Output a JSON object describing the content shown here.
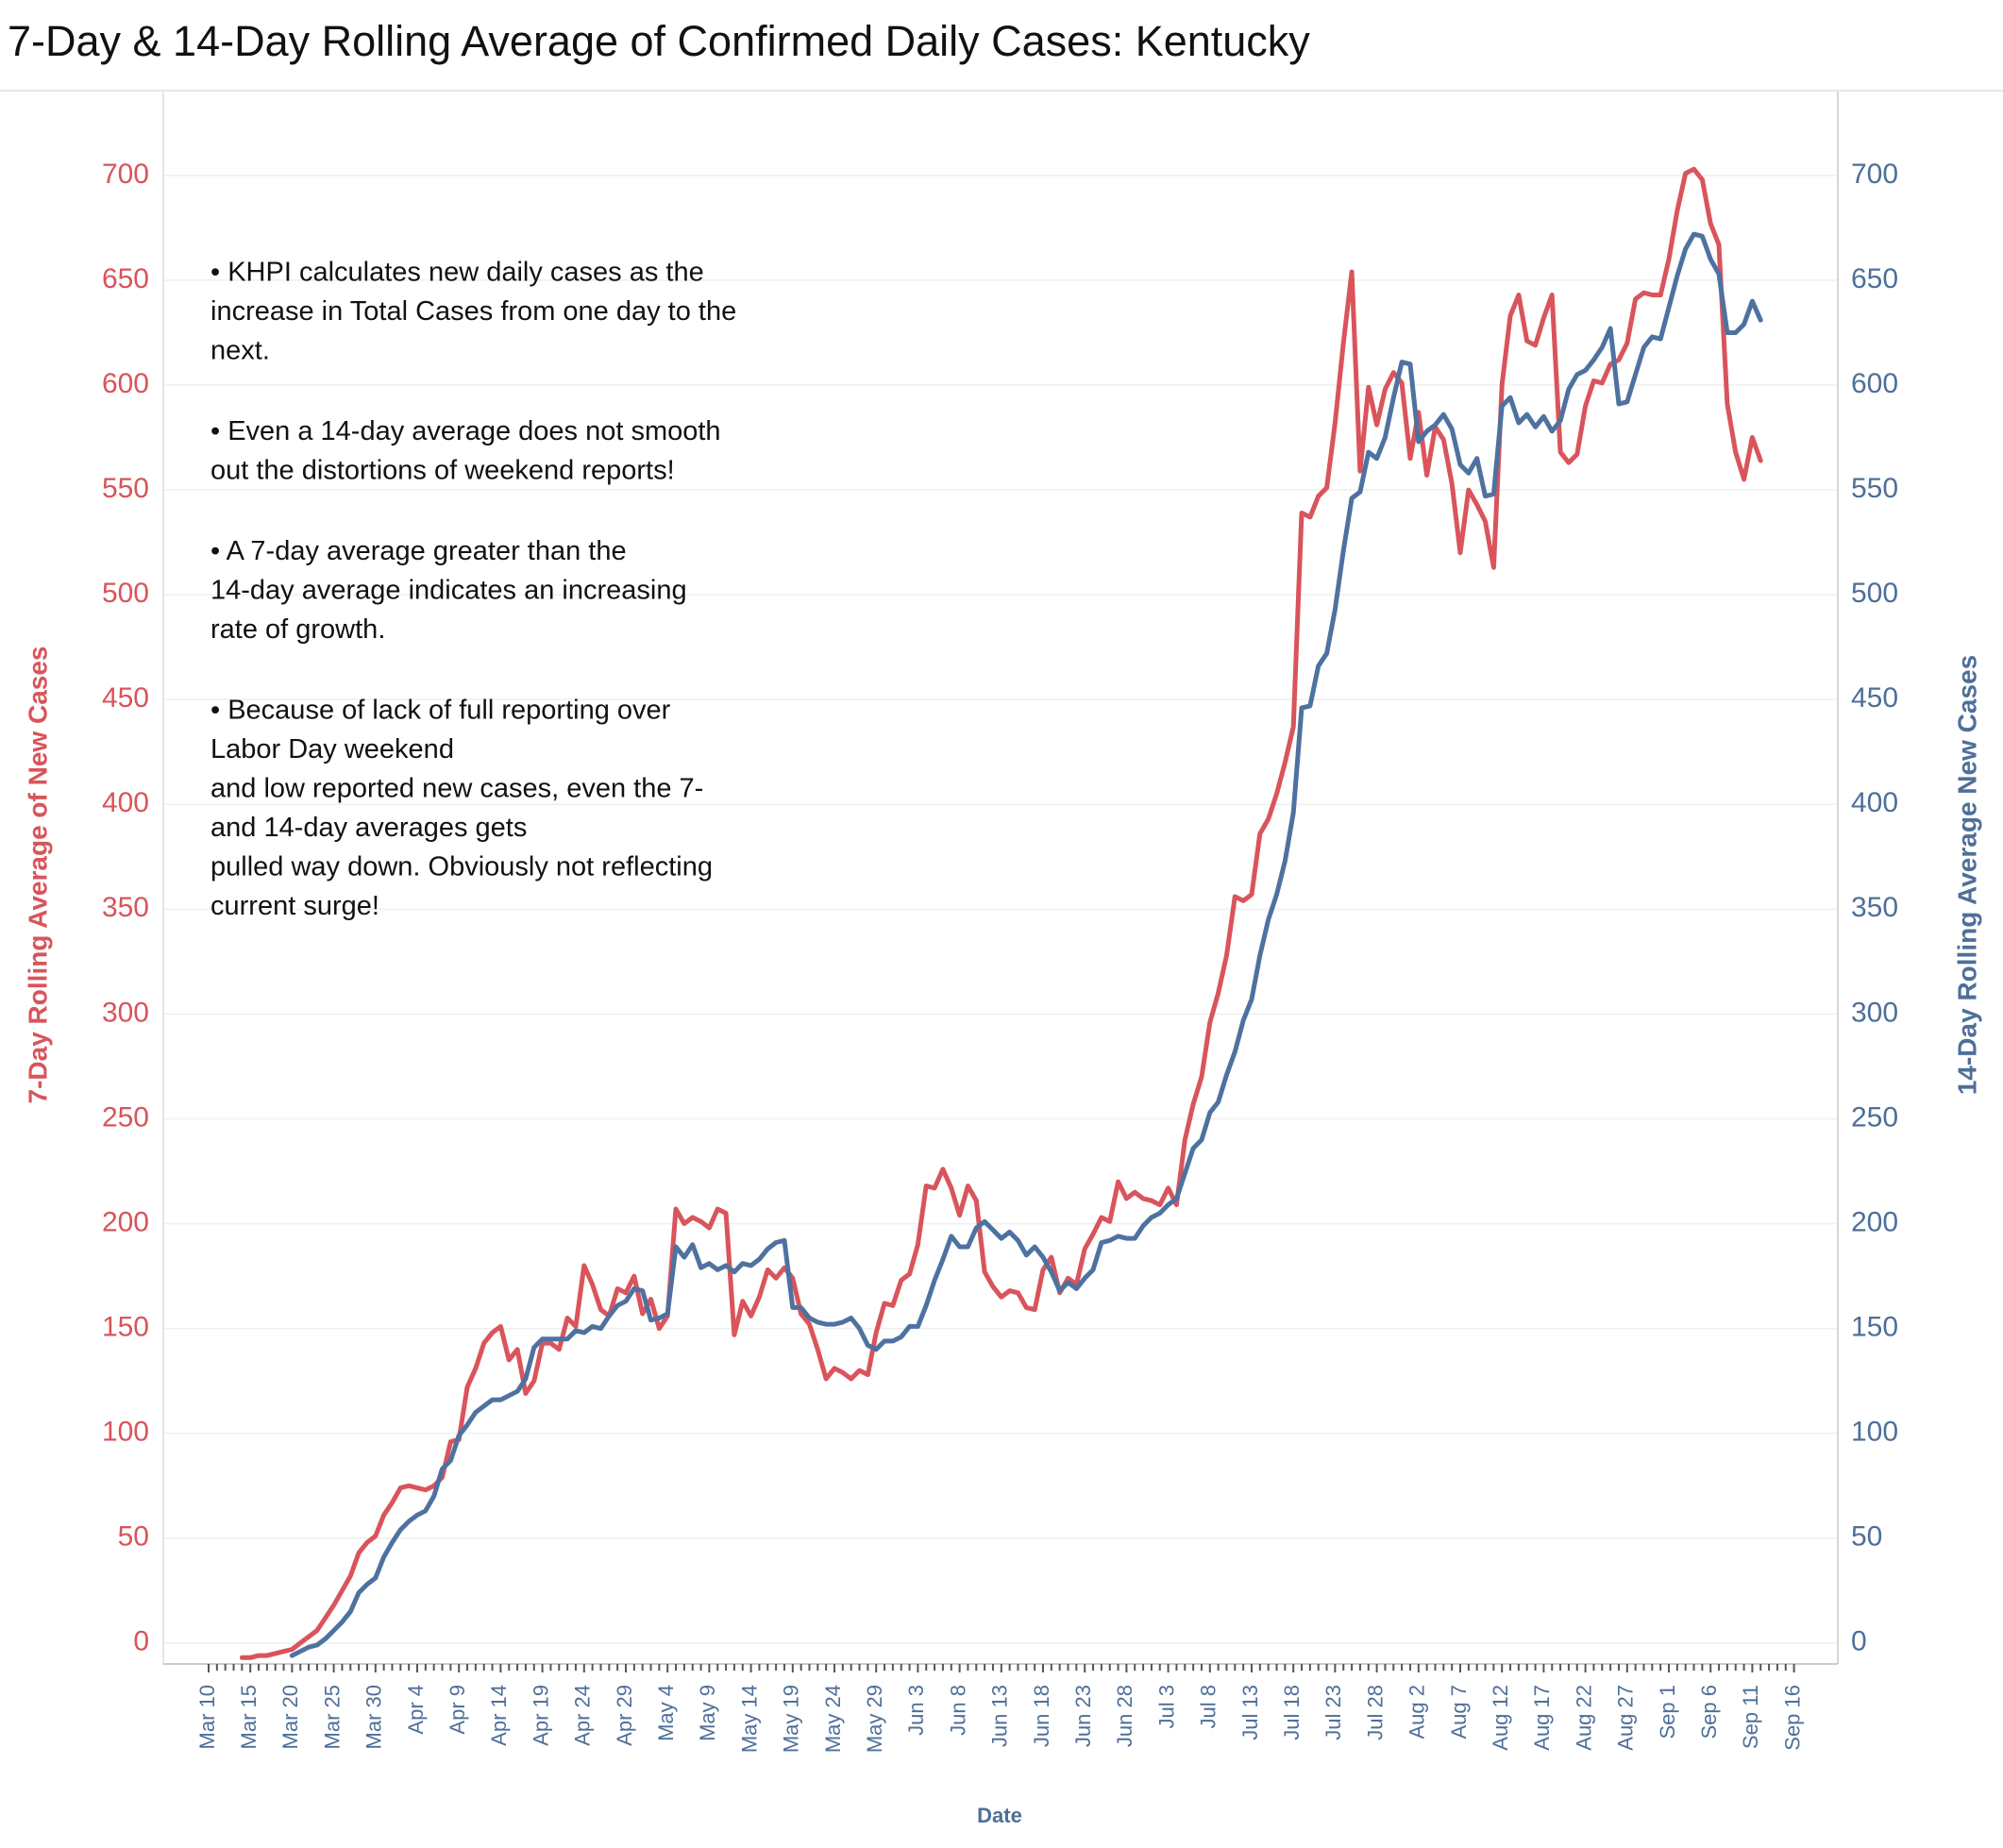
{
  "chart_data": {
    "type": "line",
    "title": "7-Day & 14-Day Rolling Average of Confirmed Daily  Cases:  Kentucky",
    "y_label": "7-Day Rolling  Average of New Cases",
    "y2_label": "14-Day Rolling Average New Cases",
    "x_label": "Date",
    "annotation": [
      [
        "• KHPI calculates new daily cases as the",
        "increase in Total Cases from one day to the",
        "next."
      ],
      [
        "• Even a 14-day average does not smooth",
        "out the distortions of weekend reports!"
      ],
      [
        "• A 7-day average greater than the",
        "14-day average indicates an increasing",
        "rate of growth."
      ],
      [
        "• Because of lack of full reporting over",
        "Labor Day weekend",
        "and low reported new cases, even the 7-",
        "and 14-day averages gets",
        "pulled way down.  Obviously not reflecting",
        "current surge!"
      ]
    ],
    "categories": [
      "Mar 10",
      null,
      null,
      null,
      null,
      "Mar 15",
      null,
      null,
      null,
      null,
      "Mar 20",
      null,
      null,
      null,
      null,
      "Mar 25",
      null,
      null,
      null,
      null,
      "Mar 30",
      null,
      null,
      null,
      null,
      "Apr 4",
      null,
      null,
      null,
      null,
      "Apr 9",
      null,
      null,
      null,
      null,
      "Apr 14",
      null,
      null,
      null,
      null,
      "Apr 19",
      null,
      null,
      null,
      null,
      "Apr 24",
      null,
      null,
      null,
      null,
      "Apr 29",
      null,
      null,
      null,
      null,
      "May 4",
      null,
      null,
      null,
      null,
      "May 9",
      null,
      null,
      null,
      null,
      "May 14",
      null,
      null,
      null,
      null,
      "May 19",
      null,
      null,
      null,
      null,
      "May 24",
      null,
      null,
      null,
      null,
      "May 29",
      null,
      null,
      null,
      null,
      "Jun 3",
      null,
      null,
      null,
      null,
      "Jun 8",
      null,
      null,
      null,
      null,
      "Jun 13",
      null,
      null,
      null,
      null,
      "Jun 18",
      null,
      null,
      null,
      null,
      "Jun 23",
      null,
      null,
      null,
      null,
      "Jun 28",
      null,
      null,
      null,
      null,
      "Jul 3",
      null,
      null,
      null,
      null,
      "Jul 8",
      null,
      null,
      null,
      null,
      "Jul 13",
      null,
      null,
      null,
      null,
      "Jul 18",
      null,
      null,
      null,
      null,
      "Jul 23",
      null,
      null,
      null,
      null,
      "Jul 28",
      null,
      null,
      null,
      null,
      "Aug 2",
      null,
      null,
      null,
      null,
      "Aug 7",
      null,
      null,
      null,
      null,
      "Aug 12",
      null,
      null,
      null,
      null,
      "Aug 17",
      null,
      null,
      null,
      null,
      "Aug 22",
      null,
      null,
      null,
      null,
      "Aug 27",
      null,
      null,
      null,
      null,
      "Sep 1",
      null,
      null,
      null,
      null,
      "Sep 6",
      null,
      null,
      null,
      null,
      "Sep 11",
      null,
      null,
      null,
      null,
      "Sep 16"
    ],
    "series": [
      {
        "name": "7-Day Rolling  Average of New Cases",
        "color": "#d9545b",
        "values": [
          null,
          null,
          null,
          null,
          -7,
          -7,
          -6,
          -6,
          -5,
          -4,
          -3,
          0,
          3,
          6,
          12,
          18,
          25,
          32,
          43,
          48,
          51,
          61,
          67,
          74,
          75,
          74,
          73,
          75,
          79,
          96,
          97,
          122,
          131,
          143,
          148,
          151,
          135,
          140,
          119,
          125,
          143,
          143,
          140,
          155,
          151,
          180,
          171,
          159,
          156,
          169,
          167,
          175,
          157,
          164,
          150,
          156,
          207,
          200,
          203,
          201,
          198,
          207,
          205,
          147,
          163,
          156,
          165,
          178,
          174,
          179,
          174,
          157,
          152,
          140,
          126,
          131,
          129,
          126,
          130,
          128,
          148,
          162,
          161,
          173,
          176,
          190,
          218,
          217,
          226,
          217,
          204,
          218,
          211,
          177,
          170,
          165,
          168,
          167,
          160,
          159,
          178,
          184,
          167,
          174,
          171,
          188,
          195,
          203,
          201,
          220,
          212,
          215,
          212,
          211,
          209,
          217,
          209,
          240,
          257,
          270,
          296,
          310,
          328,
          356,
          354,
          357,
          386,
          393,
          405,
          420,
          437,
          539,
          537,
          547,
          551,
          582,
          620,
          654,
          559,
          599,
          581,
          598,
          606,
          601,
          565,
          587,
          557,
          580,
          574,
          553,
          520,
          550,
          543,
          535,
          513,
          600,
          633,
          643,
          621,
          619,
          632,
          643,
          568,
          563,
          567,
          590,
          602,
          601,
          610,
          612,
          620,
          641,
          644,
          643,
          643,
          660,
          683,
          701,
          703,
          698,
          677,
          667,
          591,
          568,
          555,
          575,
          564,
          null,
          null,
          null,
          null
        ]
      },
      {
        "name": "14-Day Rolling Average New Cases",
        "color": "#4e72a0",
        "axis": "y2",
        "values": [
          null,
          null,
          null,
          null,
          null,
          null,
          null,
          null,
          null,
          null,
          -6,
          -4,
          -2,
          -1,
          2,
          6,
          10,
          15,
          24,
          28,
          31,
          41,
          48,
          54,
          58,
          61,
          63,
          70,
          83,
          87,
          99,
          104,
          110,
          113,
          116,
          116,
          118,
          120,
          126,
          141,
          145,
          145,
          145,
          145,
          149,
          148,
          151,
          150,
          156,
          161,
          163,
          169,
          168,
          154,
          155,
          157,
          189,
          184,
          190,
          179,
          181,
          178,
          180,
          177,
          181,
          180,
          183,
          188,
          191,
          192,
          160,
          160,
          155,
          153,
          152,
          152,
          153,
          155,
          150,
          142,
          140,
          144,
          144,
          146,
          151,
          151,
          161,
          173,
          183,
          194,
          189,
          189,
          198,
          201,
          197,
          193,
          196,
          192,
          185,
          189,
          184,
          177,
          168,
          172,
          169,
          174,
          178,
          191,
          192,
          194,
          193,
          193,
          199,
          203,
          205,
          209,
          212,
          224,
          236,
          240,
          253,
          258,
          271,
          282,
          297,
          307,
          328,
          345,
          357,
          373,
          396,
          446,
          447,
          466,
          472,
          493,
          521,
          546,
          549,
          568,
          565,
          575,
          594,
          611,
          610,
          573,
          578,
          581,
          586,
          579,
          562,
          558,
          565,
          547,
          548,
          590,
          594,
          582,
          586,
          580,
          585,
          578,
          583,
          598,
          605,
          607,
          612,
          618,
          627,
          591,
          592,
          605,
          618,
          623,
          622,
          637,
          652,
          665,
          672,
          671,
          660,
          653,
          625,
          625,
          629,
          640,
          631,
          null,
          null,
          null,
          null
        ]
      }
    ],
    "ylim": [
      -10,
      740
    ],
    "yticks": [
      0,
      50,
      100,
      150,
      200,
      250,
      300,
      350,
      400,
      450,
      500,
      550,
      600,
      650,
      700
    ],
    "y2lim": [
      -10,
      740
    ],
    "y2ticks": [
      0,
      50,
      100,
      150,
      200,
      250,
      300,
      350,
      400,
      450,
      500,
      550,
      600,
      650,
      700
    ],
    "grid": true
  }
}
